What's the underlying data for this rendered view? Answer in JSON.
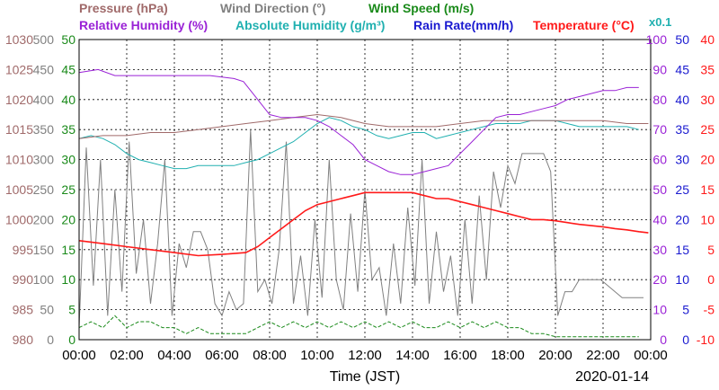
{
  "chart_data": {
    "type": "line",
    "title": "",
    "legend": [
      {
        "text": "Pressure (hPa)",
        "color": "#a06a6a"
      },
      {
        "text": "Wind Direction (°)",
        "color": "#808080"
      },
      {
        "text": "Wind Speed (m/s)",
        "color": "#1a8a1a"
      },
      {
        "text": "Relative Humidity (%)",
        "color": "#9a22d6"
      },
      {
        "text": "Absolute Humidity (g/m³)",
        "color": "#20b0b0"
      },
      {
        "text": "Rain Rate(mm/h)",
        "color": "#1a1ad0"
      },
      {
        "text": "Temperature (°C)",
        "color": "#ff1a1a"
      },
      {
        "text": "x0.1",
        "color": "#20b0b0"
      }
    ],
    "xlabel": "Time (JST)",
    "date": "2020-01-14",
    "x_ticks": [
      "00:00",
      "02:00",
      "04:00",
      "06:00",
      "08:00",
      "10:00",
      "12:00",
      "14:00",
      "16:00",
      "18:00",
      "20:00",
      "22:00",
      "00:00"
    ],
    "axes": {
      "pressure": {
        "ticks": [
          "1030",
          "1025",
          "1020",
          "1015",
          "1010",
          "1005",
          "1000",
          "995",
          "990",
          "985",
          "980"
        ],
        "range": [
          980,
          1030
        ],
        "color": "#a06a6a"
      },
      "wind_direction": {
        "ticks": [
          "500",
          "450",
          "400",
          "350",
          "300",
          "250",
          "200",
          "150",
          "100",
          "50",
          "0"
        ],
        "range": [
          0,
          500
        ],
        "color": "#808080"
      },
      "wind_speed": {
        "ticks": [
          "50",
          "45",
          "40",
          "35",
          "30",
          "25",
          "20",
          "15",
          "10",
          "5",
          "0"
        ],
        "range": [
          0,
          50
        ],
        "color": "#1a8a1a"
      },
      "relative_humidity": {
        "ticks": [
          "100",
          "90",
          "80",
          "70",
          "60",
          "50",
          "40",
          "30",
          "20",
          "10",
          "0"
        ],
        "range": [
          0,
          100
        ],
        "color": "#9a22d6"
      },
      "rain_rate": {
        "ticks": [
          "50",
          "45",
          "40",
          "35",
          "30",
          "25",
          "20",
          "15",
          "10",
          "5",
          "0"
        ],
        "range": [
          0,
          50
        ],
        "color": "#1a1ad0"
      },
      "temperature": {
        "ticks": [
          "40",
          "35",
          "30",
          "25",
          "20",
          "15",
          "10",
          "5",
          "0",
          "-5",
          "-10"
        ],
        "range": [
          -10,
          40
        ],
        "color": "#ff1a1a"
      }
    },
    "series": [
      {
        "name": "Relative Humidity (%)",
        "axis": "relative_humidity",
        "x": [
          0,
          0.8,
          1.5,
          2.5,
          3.5,
          4.5,
          5.5,
          6.5,
          6.9,
          7.5,
          8,
          8.5,
          9,
          9.5,
          10,
          10.5,
          11,
          11.5,
          12,
          12.5,
          13,
          13.5,
          14,
          14.5,
          15,
          15.5,
          16,
          16.5,
          17,
          17.5,
          18,
          18.5,
          19,
          19.5,
          20,
          20.5,
          21,
          21.5,
          22,
          22.5,
          23,
          23.5
        ],
        "y": [
          89,
          90,
          88,
          88,
          88,
          88,
          88,
          87,
          86,
          80,
          75,
          74,
          74,
          74,
          73,
          71,
          68,
          65,
          60,
          58,
          56,
          55,
          55,
          56,
          57,
          58,
          62,
          66,
          70,
          74,
          75,
          75,
          76,
          77,
          78,
          80,
          81,
          82,
          83,
          83,
          84,
          84
        ]
      },
      {
        "name": "Absolute Humidity (g/m³) x0.1",
        "axis": "wind_speed",
        "x": [
          0,
          0.5,
          1,
          1.5,
          2,
          2.5,
          3,
          3.5,
          4,
          4.5,
          5,
          5.5,
          6,
          6.5,
          7,
          7.5,
          8,
          8.5,
          9,
          9.5,
          10,
          10.5,
          11,
          11.5,
          12,
          12.5,
          13,
          13.5,
          14,
          14.5,
          15,
          15.5,
          16,
          16.5,
          17,
          17.5,
          18,
          18.5,
          19,
          19.5,
          20,
          20.5,
          21,
          21.5,
          22,
          22.5,
          23,
          23.5
        ],
        "y": [
          33.5,
          34,
          33.5,
          32.5,
          31,
          30,
          29.5,
          29,
          28.5,
          28.5,
          29,
          29,
          29,
          29,
          29.5,
          30,
          31,
          32,
          33,
          34.5,
          36,
          37,
          36.5,
          35.5,
          35,
          34,
          33.5,
          34,
          34.5,
          34.5,
          33.5,
          34,
          34.5,
          35,
          35.5,
          36,
          36,
          36,
          36.5,
          36.5,
          36.5,
          36,
          35.5,
          35.5,
          35.5,
          35.5,
          35.5,
          35
        ]
      },
      {
        "name": "Pressure (hPa)",
        "axis": "pressure",
        "x": [
          0,
          1,
          2,
          3,
          4,
          5,
          6,
          7,
          8,
          9,
          10,
          11,
          12,
          13,
          14,
          15,
          16,
          17,
          18,
          19,
          20,
          21,
          22,
          23,
          23.9
        ],
        "y": [
          1013.5,
          1014,
          1014,
          1014.5,
          1014.5,
          1015,
          1015.5,
          1016,
          1016.5,
          1017,
          1017.5,
          1017,
          1016,
          1015.5,
          1015.5,
          1015.5,
          1016,
          1016.5,
          1016.5,
          1016.5,
          1016.5,
          1016.5,
          1016.5,
          1016,
          1016
        ]
      },
      {
        "name": "Wind Direction (°)",
        "axis": "wind_direction",
        "x": [
          0,
          0.3,
          0.6,
          0.9,
          1.2,
          1.5,
          1.8,
          2.1,
          2.4,
          2.7,
          3,
          3.3,
          3.6,
          3.9,
          4.2,
          4.5,
          4.8,
          5.1,
          5.4,
          5.7,
          6,
          6.3,
          6.6,
          6.9,
          7.2,
          7.5,
          7.8,
          8.1,
          8.4,
          8.7,
          9,
          9.3,
          9.6,
          9.9,
          10.2,
          10.5,
          10.8,
          11.1,
          11.4,
          11.7,
          12,
          12.3,
          12.6,
          12.9,
          13.2,
          13.5,
          13.8,
          14.1,
          14.4,
          14.7,
          15,
          15.3,
          15.6,
          15.9,
          16.2,
          16.5,
          16.8,
          17.1,
          17.4,
          17.7,
          18,
          18.3,
          18.6,
          18.9,
          19.2,
          19.5,
          19.8,
          20.1,
          20.4,
          20.7,
          21,
          21.3,
          21.6,
          21.9,
          22.2,
          22.5,
          22.8,
          23.1,
          23.4,
          23.7
        ],
        "y": [
          20,
          320,
          90,
          300,
          40,
          250,
          80,
          330,
          110,
          200,
          60,
          160,
          300,
          40,
          160,
          120,
          180,
          180,
          150,
          60,
          40,
          80,
          50,
          60,
          350,
          80,
          100,
          60,
          150,
          330,
          60,
          140,
          40,
          200,
          70,
          300,
          100,
          50,
          210,
          80,
          250,
          100,
          120,
          40,
          160,
          60,
          220,
          90,
          300,
          60,
          180,
          80,
          140,
          40,
          200,
          60,
          240,
          100,
          280,
          220,
          290,
          260,
          310,
          310,
          310,
          310,
          280,
          40,
          80,
          80,
          100,
          100,
          100,
          100,
          90,
          80,
          70,
          70,
          70,
          70
        ]
      },
      {
        "name": "Wind Speed (m/s)",
        "axis": "wind_speed",
        "x": [
          0,
          0.5,
          1,
          1.5,
          2,
          2.5,
          3,
          3.5,
          4,
          4.5,
          5,
          5.5,
          6,
          6.5,
          7,
          7.5,
          8,
          8.5,
          9,
          9.5,
          10,
          10.5,
          11,
          11.5,
          12,
          12.5,
          13,
          13.5,
          14,
          14.5,
          15,
          15.5,
          16,
          16.5,
          17,
          17.5,
          18,
          18.5,
          19,
          19.5,
          20,
          20.5,
          21,
          21.5,
          22,
          22.5,
          23,
          23.5
        ],
        "y": [
          2,
          3,
          2,
          4,
          2,
          3,
          3,
          2,
          2,
          1,
          2,
          1,
          1,
          1,
          1,
          2,
          3,
          2,
          3,
          2,
          3,
          2,
          3,
          2,
          3,
          2,
          3,
          2,
          3,
          2,
          2,
          3,
          2,
          3,
          2,
          3,
          2,
          2,
          1,
          1,
          0.5,
          0.5,
          0.5,
          0.5,
          0.5,
          0.5,
          0.5,
          0.5
        ]
      },
      {
        "name": "Rain Rate(mm/h)",
        "axis": "rain_rate",
        "x": [
          0,
          23.9
        ],
        "y": [
          0,
          0
        ]
      },
      {
        "name": "Temperature (°C)",
        "axis": "temperature",
        "x": [
          0,
          1,
          2,
          3,
          4,
          5,
          6,
          7,
          7.5,
          8,
          8.5,
          9,
          9.5,
          10,
          10.5,
          11,
          11.5,
          12,
          12.5,
          13,
          13.5,
          14,
          14.5,
          15,
          15.5,
          16,
          16.5,
          17,
          17.5,
          18,
          18.5,
          19,
          19.5,
          20,
          20.5,
          21,
          21.5,
          22,
          22.5,
          23,
          23.5,
          23.9
        ],
        "y": [
          6.5,
          6,
          5.5,
          5,
          4.5,
          4,
          4.2,
          4.5,
          5.5,
          7,
          8.5,
          10,
          11.5,
          12.5,
          13,
          13.5,
          14,
          14.5,
          14.5,
          14.5,
          14.5,
          14.5,
          14,
          13.5,
          13.5,
          13,
          12.5,
          12,
          11.5,
          11,
          10.5,
          10,
          10,
          9.8,
          9.5,
          9.2,
          9,
          8.8,
          8.5,
          8.3,
          8,
          7.8
        ]
      }
    ]
  }
}
